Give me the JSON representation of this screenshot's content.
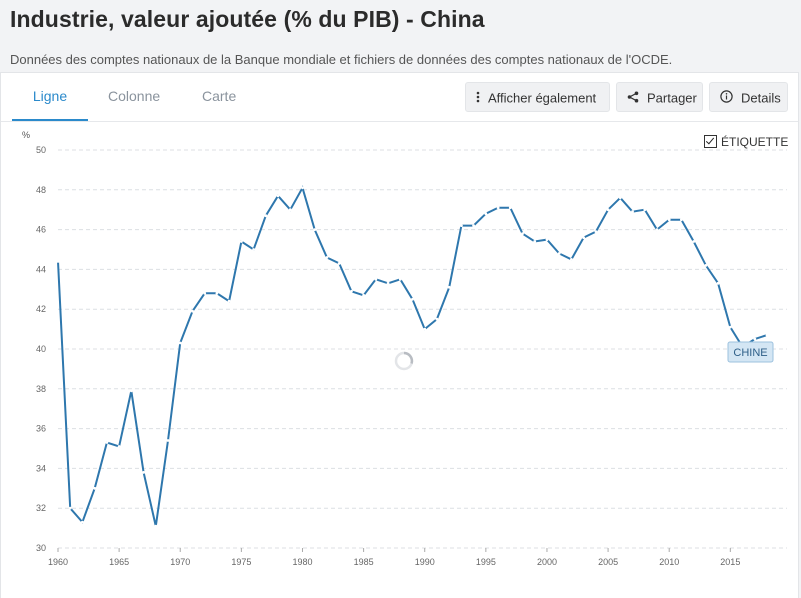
{
  "page": {
    "title": "Industrie, valeur ajoutée (% du PIB) - China",
    "subtitle": "Données des comptes nationaux de la Banque mondiale et fichiers de données des comptes nationaux de l'OCDE."
  },
  "tabs": [
    {
      "label": "Ligne",
      "active": true
    },
    {
      "label": "Colonne",
      "active": false
    },
    {
      "label": "Carte",
      "active": false
    }
  ],
  "actions": {
    "also_label": "Afficher également",
    "share_label": "Partager",
    "details_label": "Details"
  },
  "label_toggle": {
    "label": "ÉTIQUETTE",
    "checked": true
  },
  "colors": {
    "line": "#2e77ad",
    "accent": "#2b8acb",
    "grid": "#dcdfe3"
  },
  "chart_data": {
    "type": "line",
    "ylabel": "%",
    "ylim": [
      30,
      50
    ],
    "yticks": [
      30,
      32,
      34,
      36,
      38,
      40,
      42,
      44,
      46,
      48,
      50
    ],
    "xlim": [
      1960,
      2018
    ],
    "xticks": [
      1960,
      1965,
      1970,
      1975,
      1980,
      1985,
      1990,
      1995,
      2000,
      2005,
      2010,
      2015
    ],
    "grid": true,
    "series": [
      {
        "name": "CHINE",
        "x": [
          1960,
          1961,
          1962,
          1963,
          1964,
          1965,
          1966,
          1967,
          1968,
          1969,
          1970,
          1971,
          1972,
          1973,
          1974,
          1975,
          1976,
          1977,
          1978,
          1979,
          1980,
          1981,
          1982,
          1983,
          1984,
          1985,
          1986,
          1987,
          1988,
          1989,
          1990,
          1991,
          1992,
          1993,
          1994,
          1995,
          1996,
          1997,
          1998,
          1999,
          2000,
          2001,
          2002,
          2003,
          2004,
          2005,
          2006,
          2007,
          2008,
          2009,
          2010,
          2011,
          2012,
          2013,
          2014,
          2015,
          2016,
          2017,
          2018
        ],
        "values": [
          44.4,
          32.0,
          31.3,
          33.0,
          35.3,
          35.1,
          37.9,
          33.8,
          31.1,
          35.4,
          40.3,
          41.9,
          42.8,
          42.8,
          42.4,
          45.4,
          45.0,
          46.7,
          47.7,
          47.0,
          48.1,
          46.0,
          44.6,
          44.3,
          42.9,
          42.7,
          43.5,
          43.3,
          43.5,
          42.5,
          41.0,
          41.5,
          43.1,
          46.2,
          46.2,
          46.8,
          47.1,
          47.1,
          45.8,
          45.4,
          45.5,
          44.8,
          44.5,
          45.6,
          45.9,
          47.0,
          47.6,
          46.9,
          47.0,
          46.0,
          46.5,
          46.5,
          45.4,
          44.2,
          43.3,
          41.1,
          40.1,
          40.5,
          40.7
        ]
      }
    ]
  }
}
